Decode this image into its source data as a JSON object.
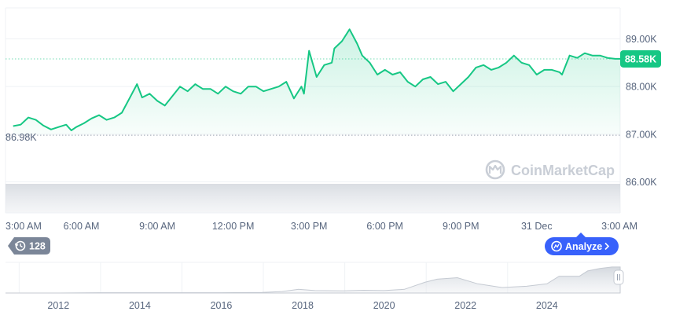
{
  "chart_data": {
    "type": "area",
    "title": "",
    "xlabel": "",
    "ylabel": "",
    "y_ticks": [
      "89.00K",
      "88.00K",
      "87.00K",
      "86.00K"
    ],
    "y_tick_values": [
      89000,
      88000,
      87000,
      86000
    ],
    "ylim": [
      85350,
      89650
    ],
    "x_tick_labels": [
      "3:00 AM",
      "6:00 AM",
      "9:00 AM",
      "12:00 PM",
      "3:00 PM",
      "6:00 PM",
      "9:00 PM",
      "31 Dec",
      "3:00 AM"
    ],
    "x_tick_hours": [
      0,
      3,
      6,
      9,
      12,
      15,
      18,
      21,
      24
    ],
    "xlim_hours": [
      0,
      24.3
    ],
    "series": [
      {
        "color": "#16c784",
        "x_hours": [
          0.3,
          0.6,
          0.9,
          1.2,
          1.5,
          1.8,
          2.1,
          2.4,
          2.6,
          2.8,
          3.1,
          3.4,
          3.7,
          4.0,
          4.3,
          4.6,
          4.9,
          5.2,
          5.4,
          5.7,
          6.0,
          6.3,
          6.6,
          6.9,
          7.2,
          7.5,
          7.8,
          8.1,
          8.4,
          8.7,
          9.0,
          9.3,
          9.6,
          9.9,
          10.2,
          10.5,
          10.8,
          11.1,
          11.4,
          11.7,
          11.8,
          12.0,
          12.3,
          12.6,
          12.9,
          13.0,
          13.3,
          13.6,
          13.9,
          14.1,
          14.4,
          14.7,
          15.0,
          15.3,
          15.6,
          15.9,
          16.2,
          16.5,
          16.8,
          17.1,
          17.4,
          17.7,
          18.0,
          18.3,
          18.6,
          18.9,
          19.2,
          19.5,
          19.8,
          20.1,
          20.4,
          20.7,
          21.0,
          21.3,
          21.6,
          21.9,
          22.0,
          22.3,
          22.6,
          22.9,
          23.2,
          23.5,
          23.8,
          24.1,
          24.3
        ],
        "values": [
          87170,
          87200,
          87350,
          87300,
          87180,
          87100,
          87150,
          87200,
          87080,
          87150,
          87230,
          87330,
          87400,
          87300,
          87350,
          87450,
          87750,
          88050,
          87770,
          87850,
          87700,
          87600,
          87800,
          88000,
          87900,
          88050,
          87950,
          87950,
          87850,
          88000,
          87900,
          87850,
          88000,
          88000,
          87900,
          87950,
          88000,
          88100,
          87750,
          88000,
          87850,
          88750,
          88200,
          88450,
          88500,
          88800,
          88950,
          89200,
          88900,
          88650,
          88500,
          88250,
          88350,
          88250,
          88300,
          88100,
          88000,
          88150,
          88200,
          88050,
          88100,
          87900,
          88050,
          88200,
          88400,
          88450,
          88350,
          88400,
          88500,
          88650,
          88500,
          88450,
          88250,
          88350,
          88350,
          88300,
          88250,
          88650,
          88600,
          88700,
          88650,
          88650,
          88600,
          88580,
          88580
        ]
      }
    ],
    "current_price_label": "88.58K",
    "current_price": 88580,
    "low_label": "86.98K",
    "low_value": 86980,
    "watermark": "CoinMarketCap",
    "badge_count": "128",
    "analyze_label": "Analyze",
    "navigator": {
      "x_tick_labels": [
        "2012",
        "2014",
        "2016",
        "2018",
        "2020",
        "2022",
        "2024"
      ],
      "x_tick_years": [
        2012,
        2014,
        2016,
        2018,
        2020,
        2022,
        2024
      ],
      "year_range": [
        2010.7,
        2025.8
      ],
      "years": [
        2010.7,
        2012,
        2013,
        2014,
        2015,
        2016,
        2017,
        2017.5,
        2017.9,
        2018.3,
        2019,
        2019.5,
        2020,
        2020.5,
        2021,
        2021.3,
        2021.8,
        2022.3,
        2022.9,
        2023.5,
        2024,
        2024.3,
        2024.8,
        2025.0,
        2025.3,
        2025.6,
        2025.8
      ],
      "relative_values": [
        0.0,
        0.0,
        0.01,
        0.01,
        0.01,
        0.01,
        0.02,
        0.05,
        0.12,
        0.08,
        0.07,
        0.09,
        0.08,
        0.12,
        0.35,
        0.45,
        0.5,
        0.3,
        0.18,
        0.22,
        0.3,
        0.55,
        0.55,
        0.72,
        0.8,
        0.85,
        0.85
      ]
    }
  }
}
